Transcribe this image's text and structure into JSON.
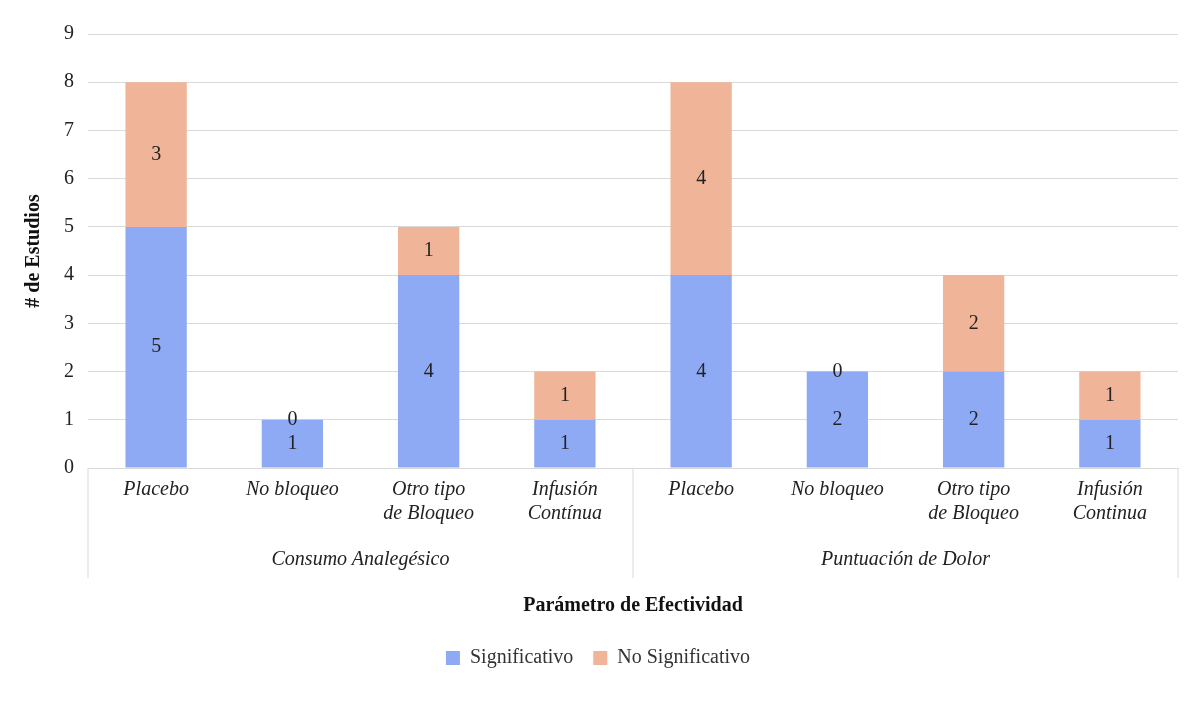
{
  "chart_data": {
    "type": "bar",
    "stacked": true,
    "xlabel": "Parámetro de Efectividad",
    "ylabel": "# de Estudios",
    "categories": [
      "Placebo",
      "No bloqueo",
      "Otro tipo de Bloqueo",
      "Infusión Contínua",
      "Placebo",
      "No bloqueo",
      "Otro tipo de Bloqueo",
      "Infusión Continua"
    ],
    "series": [
      {
        "name": "Significativo",
        "color": "#8faaf5",
        "values": [
          5,
          1,
          4,
          1,
          4,
          2,
          2,
          1
        ]
      },
      {
        "name": "No Significativo",
        "color": "#f0b498",
        "values": [
          3,
          0,
          1,
          1,
          4,
          0,
          2,
          1
        ]
      }
    ],
    "annotations": [
      "Consumo Analegésico",
      "Puntuación de Dolor"
    ],
    "ylim": [
      0,
      9
    ],
    "yticks": [
      0,
      1,
      2,
      3,
      4,
      5,
      6,
      7,
      8,
      9
    ],
    "grid": "y",
    "legend": "bottom",
    "data_labels": true
  }
}
